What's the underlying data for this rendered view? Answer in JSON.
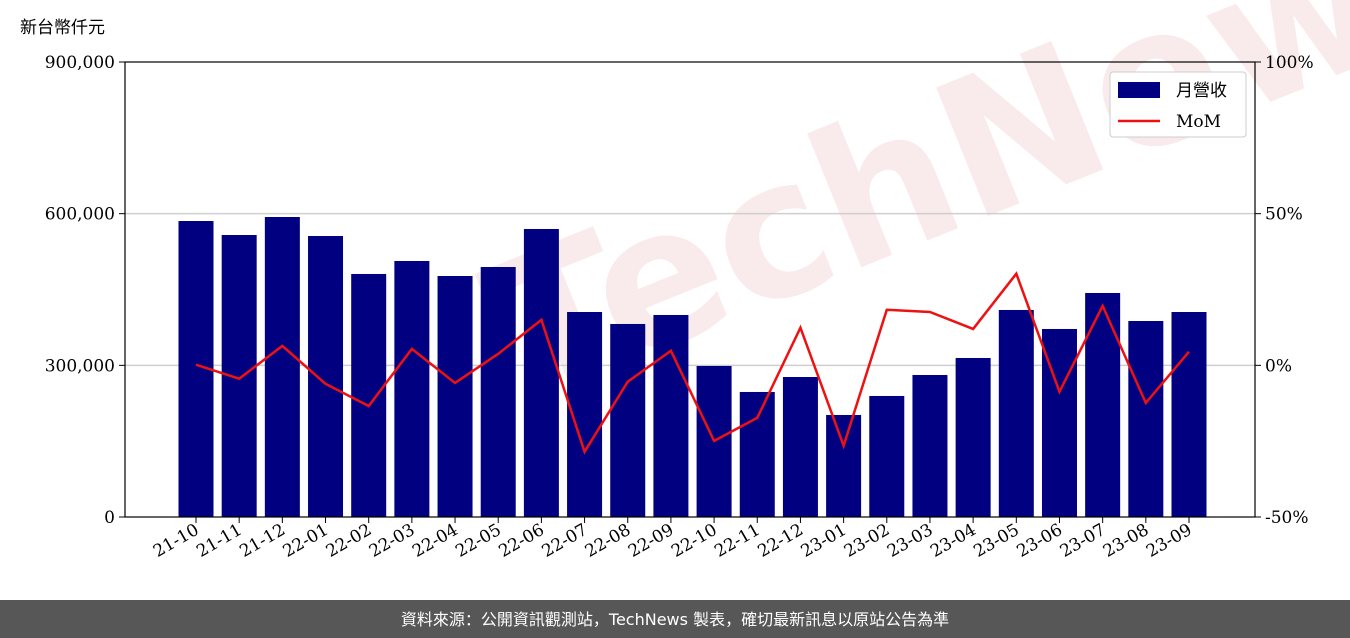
{
  "chart_data": {
    "type": "bar_line",
    "y_label": "新台幣仟元",
    "watermark": "TechNews",
    "source": "資料來源：公開資訊觀測站，TechNews 製表，確切最新訊息以原站公告為準",
    "categories": [
      "21-10",
      "21-11",
      "21-12",
      "22-01",
      "22-02",
      "22-03",
      "22-04",
      "22-05",
      "22-06",
      "22-07",
      "22-08",
      "22-09",
      "22-10",
      "22-11",
      "22-12",
      "23-01",
      "23-02",
      "23-03",
      "23-04",
      "23-05",
      "23-06",
      "23-07",
      "23-08",
      "23-09"
    ],
    "series": [
      {
        "name": "月營收",
        "type": "bar",
        "color": "#000080",
        "values": [
          585500,
          557800,
          593400,
          555800,
          480700,
          506400,
          476700,
          494500,
          569700,
          405500,
          381800,
          399600,
          298700,
          247300,
          276900,
          201800,
          239400,
          280900,
          314500,
          409500,
          371900,
          443100,
          387700,
          405500
        ]
      },
      {
        "name": "MoM",
        "type": "line",
        "axis": "y2",
        "color": "#ee1111",
        "values": [
          0.2,
          -4.4,
          6.4,
          -6.1,
          -13.4,
          5.4,
          -5.8,
          3.8,
          15.0,
          -28.5,
          -5.4,
          4.8,
          -24.9,
          -17.3,
          12.4,
          -26.5,
          18.3,
          17.6,
          12.0,
          30.2,
          -8.7,
          19.6,
          -12.4,
          4.5
        ]
      }
    ],
    "ylim": [
      0,
      900000
    ],
    "yticks": [
      {
        "value": 0,
        "label": "0"
      },
      {
        "value": 300000,
        "label": "300,000"
      },
      {
        "value": 600000,
        "label": "600,000"
      },
      {
        "value": 900000,
        "label": "900,000"
      }
    ],
    "y2lim": [
      -50,
      100
    ],
    "y2ticks": [
      {
        "value": -50,
        "label": "-50%"
      },
      {
        "value": 0,
        "label": "0%"
      },
      {
        "value": 50,
        "label": "50%"
      },
      {
        "value": 100,
        "label": "100%"
      }
    ],
    "grid": true,
    "legend": "upper right"
  }
}
